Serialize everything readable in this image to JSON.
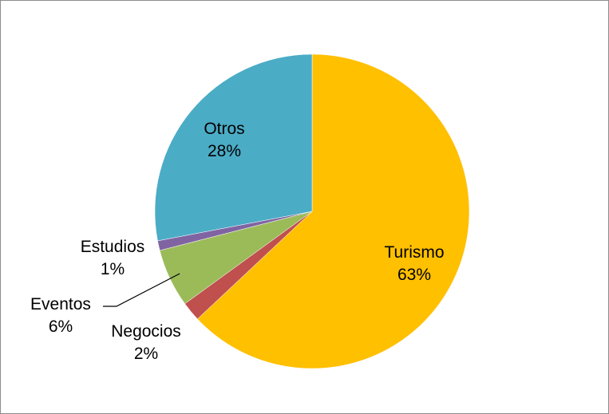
{
  "chart_data": {
    "type": "pie",
    "slices": [
      {
        "label": "Turismo",
        "percent_label": "63%",
        "value": 63,
        "color": "#FFC000"
      },
      {
        "label": "Negocios",
        "percent_label": "2%",
        "value": 2,
        "color": "#C0504D"
      },
      {
        "label": "Eventos",
        "percent_label": "6%",
        "value": 6,
        "color": "#9BBB59"
      },
      {
        "label": "Estudios",
        "percent_label": "1%",
        "value": 1,
        "color": "#8064A2"
      },
      {
        "label": "Otros",
        "percent_label": "28%",
        "value": 28,
        "color": "#4BACC6"
      }
    ],
    "start_angle_deg": 0,
    "direction": "clockwise",
    "legend": "none"
  }
}
